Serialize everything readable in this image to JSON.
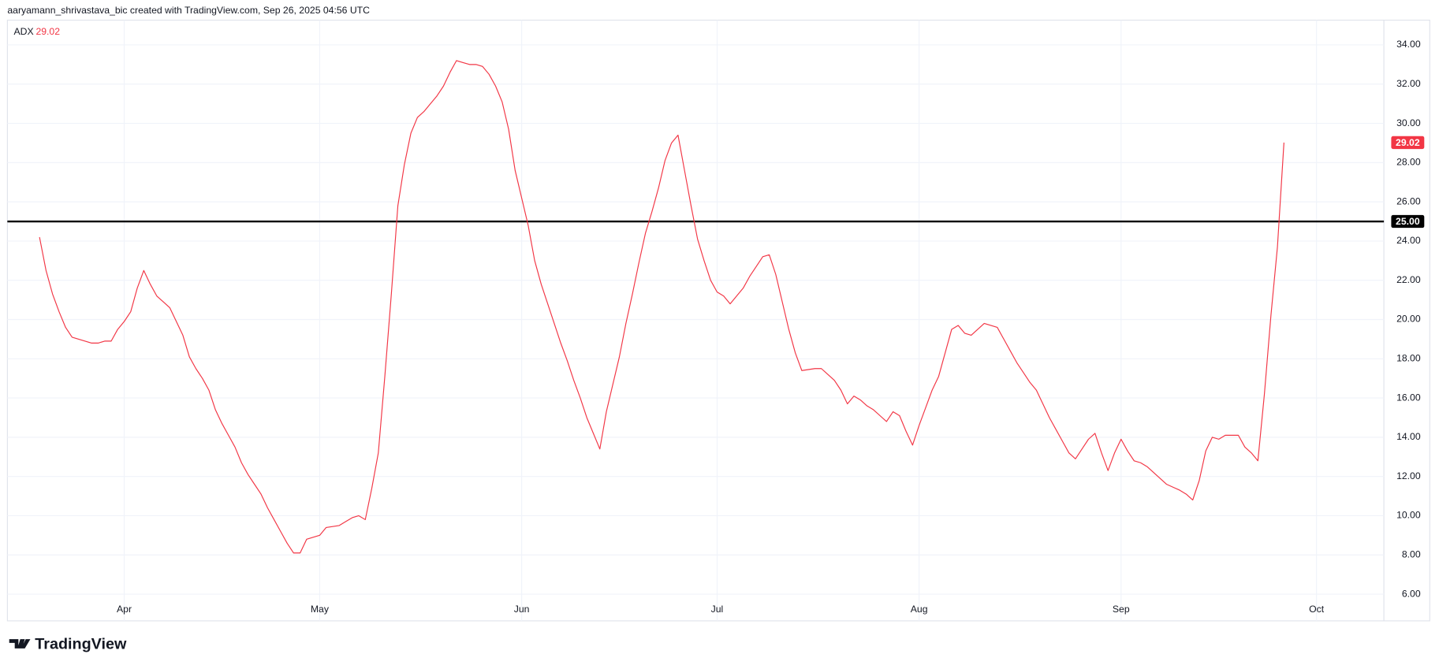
{
  "header": "aaryamann_shrivastava_bic created with TradingView.com, Sep 26, 2025 04:56 UTC",
  "footer": "TradingView",
  "chart_data": {
    "type": "line",
    "categories": [
      null,
      null,
      null,
      null,
      null,
      null,
      null,
      null,
      null,
      null,
      null,
      null,
      null,
      "Apr",
      null,
      null,
      null,
      null,
      null,
      null,
      null,
      null,
      null,
      null,
      null,
      null,
      null,
      null,
      null,
      null,
      null,
      null,
      null,
      null,
      null,
      null,
      null,
      null,
      null,
      null,
      null,
      null,
      null,
      "May",
      null,
      null,
      null,
      null,
      null,
      null,
      null,
      null,
      null,
      null,
      null,
      null,
      null,
      null,
      null,
      null,
      null,
      null,
      null,
      null,
      null,
      null,
      null,
      null,
      null,
      null,
      null,
      null,
      null,
      null,
      "Jun",
      null,
      null,
      null,
      null,
      null,
      null,
      null,
      null,
      null,
      null,
      null,
      null,
      null,
      null,
      null,
      null,
      null,
      null,
      null,
      null,
      null,
      null,
      null,
      null,
      null,
      null,
      null,
      null,
      null,
      "Jul",
      null,
      null,
      null,
      null,
      null,
      null,
      null,
      null,
      null,
      null,
      null,
      null,
      null,
      null,
      null,
      null,
      null,
      null,
      null,
      null,
      null,
      null,
      null,
      null,
      null,
      null,
      null,
      null,
      null,
      null,
      "Aug",
      null,
      null,
      null,
      null,
      null,
      null,
      null,
      null,
      null,
      null,
      null,
      null,
      null,
      null,
      null,
      null,
      null,
      null,
      null,
      null,
      null,
      null,
      null,
      null,
      null,
      null,
      null,
      null,
      null,
      null,
      "Sep",
      null,
      null,
      null,
      null,
      null,
      null,
      null,
      null,
      null,
      null,
      null,
      null,
      null,
      null,
      null,
      null,
      null,
      null,
      null,
      null,
      null,
      null,
      null,
      null,
      null,
      null,
      null,
      null,
      null,
      "Oct"
    ],
    "series": [
      {
        "name": "ADX",
        "color": "#f23645",
        "values": [
          24.2,
          22.5,
          21.3,
          20.4,
          19.6,
          19.1,
          19.0,
          18.9,
          18.8,
          18.8,
          18.9,
          18.9,
          19.5,
          19.9,
          20.4,
          21.6,
          22.5,
          21.8,
          21.2,
          20.9,
          20.6,
          19.9,
          19.2,
          18.1,
          17.5,
          17.0,
          16.4,
          15.4,
          14.7,
          14.1,
          13.5,
          12.7,
          12.1,
          11.6,
          11.1,
          10.4,
          9.8,
          9.2,
          8.6,
          8.1,
          8.1,
          8.8,
          8.9,
          9.0,
          9.4,
          9.45,
          9.5,
          9.7,
          9.9,
          10.0,
          9.8,
          11.4,
          13.2,
          17.1,
          21.3,
          25.8,
          27.9,
          29.5,
          30.3,
          30.6,
          31.0,
          31.4,
          31.9,
          32.6,
          33.2,
          33.1,
          33.0,
          33.0,
          32.9,
          32.5,
          31.9,
          31.1,
          29.7,
          27.6,
          26.2,
          24.8,
          23.0,
          21.8,
          20.8,
          19.8,
          18.8,
          17.9,
          16.9,
          16.0,
          15.0,
          14.2,
          13.4,
          15.3,
          16.7,
          18.1,
          19.8,
          21.3,
          22.9,
          24.4,
          25.5,
          26.7,
          28.1,
          29.0,
          29.4,
          27.6,
          25.8,
          24.1,
          23.0,
          22.0,
          21.4,
          21.2,
          20.8,
          21.2,
          21.6,
          22.2,
          22.7,
          23.2,
          23.3,
          22.3,
          20.9,
          19.5,
          18.3,
          17.4,
          17.45,
          17.5,
          17.5,
          17.2,
          16.9,
          16.4,
          15.7,
          16.1,
          15.9,
          15.6,
          15.4,
          15.1,
          14.8,
          15.3,
          15.1,
          14.3,
          13.6,
          14.6,
          15.5,
          16.4,
          17.1,
          18.3,
          19.5,
          19.7,
          19.3,
          19.2,
          19.5,
          19.8,
          19.7,
          19.6,
          19.0,
          18.4,
          17.8,
          17.3,
          16.8,
          16.4,
          15.7,
          15.0,
          14.4,
          13.8,
          13.2,
          12.9,
          13.4,
          13.9,
          14.2,
          13.2,
          12.3,
          13.2,
          13.9,
          13.3,
          12.8,
          12.7,
          12.5,
          12.2,
          11.9,
          11.6,
          11.45,
          11.3,
          11.1,
          10.8,
          11.8,
          13.3,
          14.0,
          13.9,
          14.1,
          14.1,
          14.1,
          13.5,
          13.2,
          12.8,
          16.2,
          20.2,
          23.7,
          29.02,
          null,
          null,
          null,
          null,
          null
        ]
      }
    ],
    "hline": {
      "value": 25,
      "label": "25.00",
      "color": "#000000"
    },
    "ylim": [
      4.64,
      35.26
    ],
    "yticks": [
      {
        "value": 6,
        "label": "6.00"
      },
      {
        "value": 8,
        "label": "8.00"
      },
      {
        "value": 10,
        "label": "10.00"
      },
      {
        "value": 12,
        "label": "12.00"
      },
      {
        "value": 14,
        "label": "14.00"
      },
      {
        "value": 16,
        "label": "16.00"
      },
      {
        "value": 18,
        "label": "18.00"
      },
      {
        "value": 20,
        "label": "20.00"
      },
      {
        "value": 22,
        "label": "22.00"
      },
      {
        "value": 24,
        "label": "24.00"
      },
      {
        "value": 26,
        "label": "26.00"
      },
      {
        "value": 28,
        "label": "28.00"
      },
      {
        "value": 30,
        "label": "30.00"
      },
      {
        "value": 32,
        "label": "32.00"
      },
      {
        "value": 34,
        "label": "34.00"
      }
    ],
    "grid": true
  }
}
